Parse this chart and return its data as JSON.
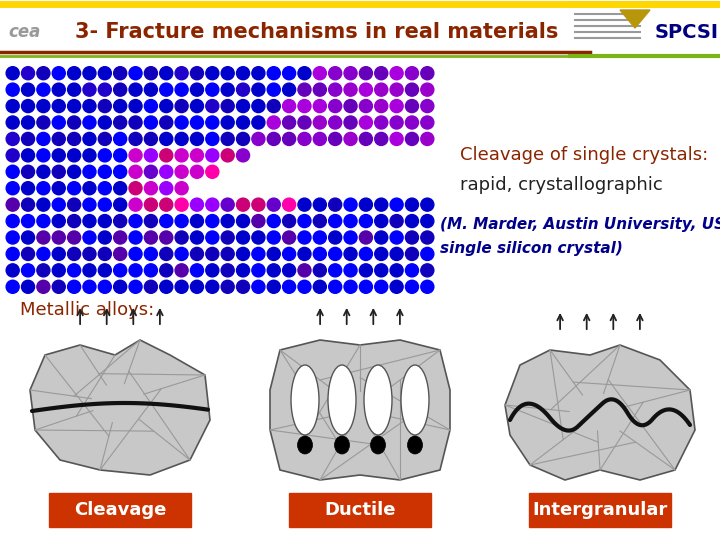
{
  "title": "3- Fracture mechanisms in real materials",
  "title_color": "#8B2500",
  "title_fontsize": 15,
  "bg_color": "#FFFFFF",
  "cleavage_text_line1": "Cleavage of single crystals:",
  "cleavage_text_line2": "rapid, crystallographic",
  "cleavage_text_color": "#8B2500",
  "cleavage_text2_color": "#222222",
  "cleavage_sub_line1": "(M. Marder, Austin University, USA",
  "cleavage_sub_line2": "single silicon crystal)",
  "cleavage_sub_color": "#00008B",
  "metallic_text": "Metallic alloys:",
  "metallic_text_color": "#8B2500",
  "label_bg_color": "#CC3300",
  "label_text_color": "#FFFFFF",
  "labels": [
    "Cleavage",
    "Ductile",
    "Intergranular"
  ],
  "arrow_color": "#222222",
  "grain_color": "#C8C8C8",
  "crack_color": "#111111",
  "header_yellow": "#FFD700",
  "header_red": "#8B2500",
  "header_green": "#7CB518"
}
